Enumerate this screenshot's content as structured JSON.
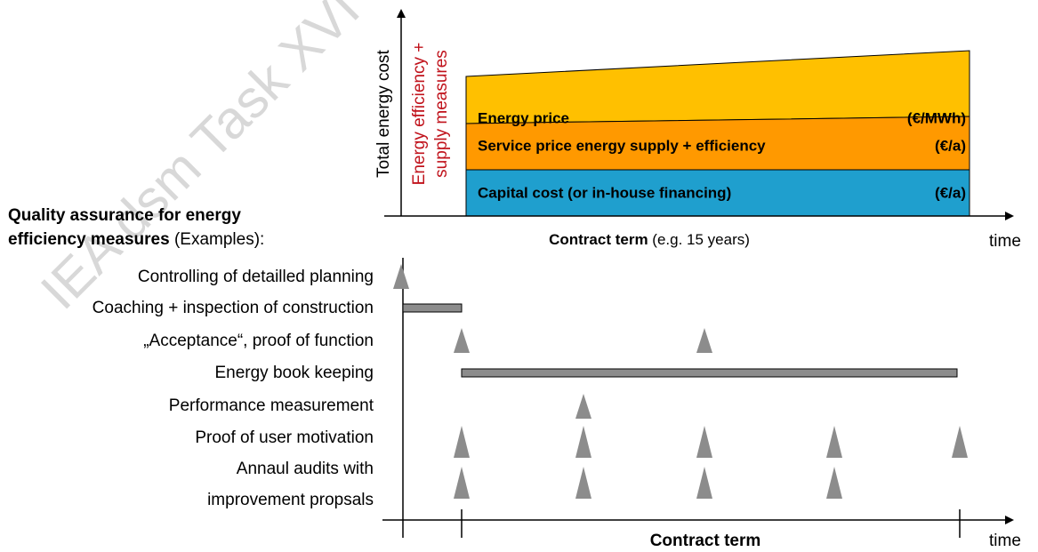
{
  "watermark": "IEA dsm Task XVI D",
  "top_chart": {
    "y_axis_label": "Total energy cost",
    "phase_label": [
      "Energy efficiency +",
      "supply measures"
    ],
    "bands": [
      {
        "label": "Energy price",
        "unit": "(€/MWh)"
      },
      {
        "label": "Service price energy supply + efficiency",
        "unit": "(€/a)"
      },
      {
        "label": "Capital cost (or in-house financing)",
        "unit": "(€/a)"
      }
    ],
    "x_axis_label": "Contract  term",
    "x_axis_note": "(e.g. 15 years)",
    "x_axis_end": "time"
  },
  "qa": {
    "heading": [
      "Quality assurance for energy",
      "efficiency measures"
    ],
    "heading_suffix": "(Examples):",
    "items": [
      "Controlling of detailled planning",
      "Coaching + inspection of construction",
      "„Acceptance“, proof of function",
      "Energy  book keeping",
      "Performance measurement",
      "Proof of user motivation",
      "Annaul audits with",
      "improvement propsals"
    ],
    "x_axis_label": "Contract  term",
    "x_axis_end": "time"
  }
}
